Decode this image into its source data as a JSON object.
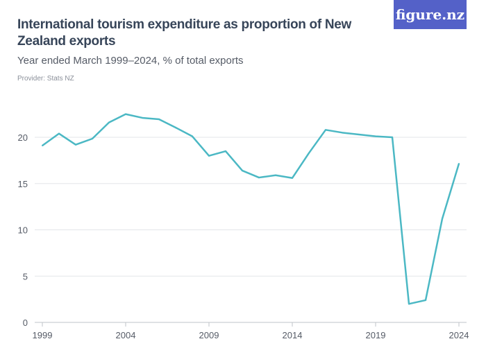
{
  "title": "International tourism expenditure as proportion of New Zealand exports",
  "subtitle": "Year ended March 1999–2024, % of total exports",
  "provider": "Provider: Stats NZ",
  "logo": "figure.nz",
  "chart_data": {
    "type": "line",
    "x": [
      1999,
      2000,
      2001,
      2002,
      2003,
      2004,
      2005,
      2006,
      2007,
      2008,
      2009,
      2010,
      2011,
      2012,
      2013,
      2014,
      2015,
      2016,
      2017,
      2018,
      2019,
      2020,
      2021,
      2022,
      2023,
      2024
    ],
    "values": [
      19.1,
      20.4,
      19.2,
      19.85,
      21.6,
      22.5,
      22.1,
      21.95,
      21.05,
      20.1,
      18.0,
      18.5,
      16.4,
      15.65,
      15.9,
      15.6,
      18.3,
      20.8,
      20.5,
      20.3,
      20.1,
      20.0,
      2.0,
      2.4,
      11.2,
      17.15
    ],
    "xticks": [
      "1999",
      "2004",
      "2009",
      "2014",
      "2019",
      "2024"
    ],
    "yticks": [
      "0",
      "5",
      "10",
      "15",
      "20"
    ],
    "ylim": [
      0,
      24
    ],
    "xlim": [
      1999,
      2024
    ],
    "grid": true,
    "color": "#4bb8c4"
  }
}
